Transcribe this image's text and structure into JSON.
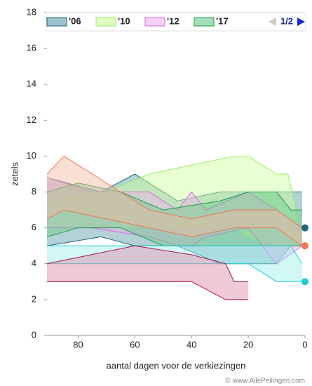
{
  "chart_data": {
    "type": "range-area",
    "ylabel": "zetels",
    "xlabel": "aantal dagen voor de verkiezingen",
    "xlim": [
      91,
      0
    ],
    "xticks": [
      80,
      60,
      40,
      20,
      0
    ],
    "ylim": [
      0,
      18
    ],
    "yticks": [
      0,
      2,
      4,
      6,
      8,
      10,
      12,
      14,
      16,
      18
    ],
    "legend_page": "1/2",
    "credit": "© www.AllePeilingen.com",
    "series": [
      {
        "name": "'06",
        "color": "#226677",
        "fill": "#5a9aa8",
        "x": [
          91,
          72,
          60,
          45,
          30,
          10,
          5,
          1
        ],
        "high": [
          8.8,
          8,
          9,
          7.5,
          8,
          8,
          8,
          8
        ],
        "low": [
          5,
          5.5,
          5,
          5,
          4,
          4,
          5,
          5
        ],
        "final": 6
      },
      {
        "name": "'10",
        "color": "#99ee66",
        "fill": "#ccff99",
        "x": [
          91,
          70,
          55,
          25,
          20,
          10,
          6,
          1
        ],
        "high": [
          7.5,
          8,
          9,
          10,
          10,
          9,
          9,
          5.5
        ],
        "low": [
          6,
          6,
          6,
          6,
          5.5,
          5,
          5,
          5
        ],
        "final": 5
      },
      {
        "name": "'12",
        "color": "#dd66dd",
        "fill": "#f0b0f0",
        "x": [
          91,
          75,
          55,
          45,
          40,
          35,
          20,
          10,
          1
        ],
        "high": [
          8.8,
          8,
          8,
          7,
          8,
          7,
          8,
          7,
          6
        ],
        "low": [
          6,
          6,
          5.5,
          5,
          5,
          5.5,
          6,
          4,
          5
        ]
      },
      {
        "name": "'17",
        "color": "#229955",
        "fill": "#66cc88",
        "x": [
          91,
          80,
          65,
          50,
          30,
          20,
          10,
          5,
          1
        ],
        "high": [
          8,
          8.5,
          8,
          7,
          7.5,
          8,
          8,
          7,
          7
        ],
        "low": [
          5.5,
          6,
          6,
          5,
          5,
          5,
          5,
          5,
          5
        ]
      },
      {
        "color": "#ee7755",
        "fill": "#f5b8a0",
        "x": [
          91,
          85,
          70,
          55,
          40,
          25,
          10,
          1
        ],
        "high": [
          9,
          10,
          8.5,
          7,
          6.5,
          7,
          7,
          6
        ],
        "low": [
          6.5,
          7,
          6.5,
          6,
          5.5,
          6,
          6,
          5
        ],
        "final": 5
      },
      {
        "color": "#22cccc",
        "fill": "#99eeee",
        "x": [
          91,
          70,
          50,
          30,
          20,
          10,
          5,
          1
        ],
        "high": [
          5,
          5,
          5,
          5,
          5,
          5,
          5,
          4
        ],
        "low": [
          4,
          4,
          4,
          4,
          4,
          3,
          3,
          3
        ],
        "final": 3
      },
      {
        "color": "#aa1144",
        "fill": "#dd88aa",
        "x": [
          91,
          60,
          40,
          28,
          25,
          20
        ],
        "high": [
          4,
          5,
          4.5,
          4,
          3,
          3
        ],
        "low": [
          3,
          3,
          3,
          2,
          2,
          2
        ]
      }
    ]
  }
}
